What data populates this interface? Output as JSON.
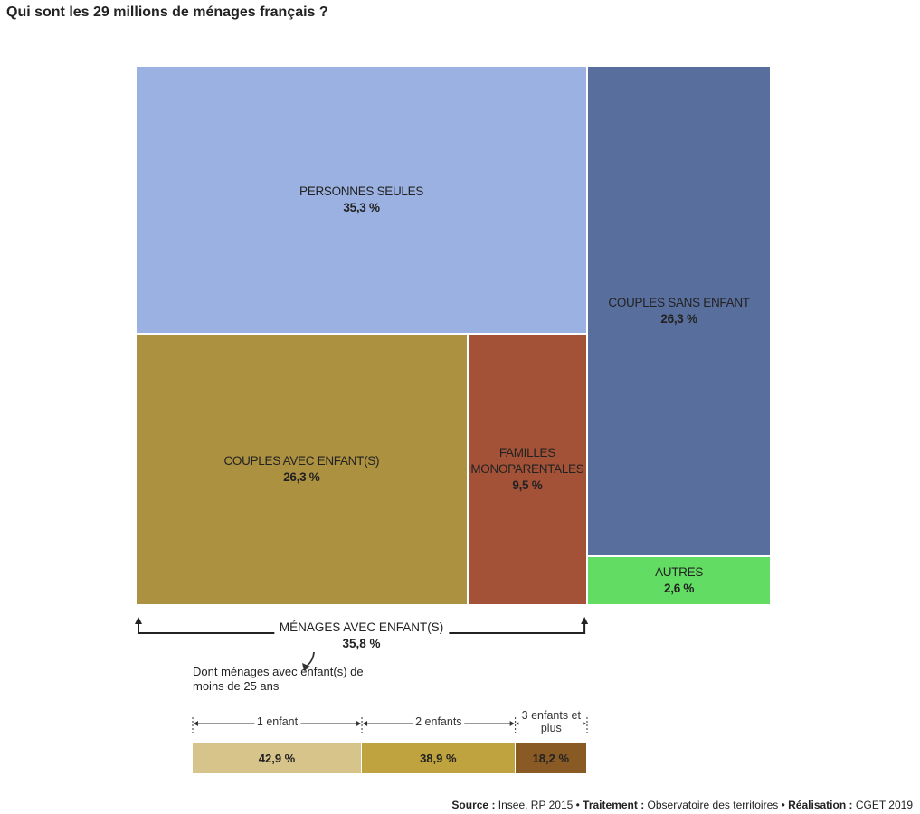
{
  "title": "Qui sont les 29 millions de ménages français ?",
  "chart_data": [
    {
      "type": "treemap",
      "categories": [
        "PERSONNES SEULES",
        "COUPLES AVEC ENFANT(S)",
        "FAMILLES MONOPARENTALES",
        "COUPLES SANS ENFANT",
        "AUTRES"
      ],
      "values": [
        35.3,
        26.3,
        9.5,
        26.3,
        2.6
      ],
      "value_labels": [
        "35,3 %",
        "26,3 %",
        "9,5 %",
        "26,3 %",
        "2,6 %"
      ],
      "colors": [
        "#9bb1e1",
        "#ac9140",
        "#a35137",
        "#586e9c",
        "#62dc62"
      ],
      "annotation": {
        "text": "MÉNAGES AVEC ENFANT(S)",
        "value": 35.8,
        "value_label": "35,8 %"
      }
    },
    {
      "type": "stacked-bar",
      "subtitle": "Dont ménages avec enfant(s) de moins de 25 ans",
      "categories": [
        "1 enfant",
        "2 enfants",
        "3 enfants et plus"
      ],
      "values": [
        42.9,
        38.9,
        18.2
      ],
      "value_labels": [
        "42,9 %",
        "38,9 %",
        "18,2 %"
      ],
      "colors": [
        "#d6c48a",
        "#bea33e",
        "#8a5a25"
      ]
    }
  ],
  "source": [
    {
      "label": "Source :",
      "text": "Insee, RP 2015 •"
    },
    {
      "label": "Traitement :",
      "text": "Observatoire des territoires •"
    },
    {
      "label": "Réalisation :",
      "text": "CGET 2019"
    }
  ]
}
